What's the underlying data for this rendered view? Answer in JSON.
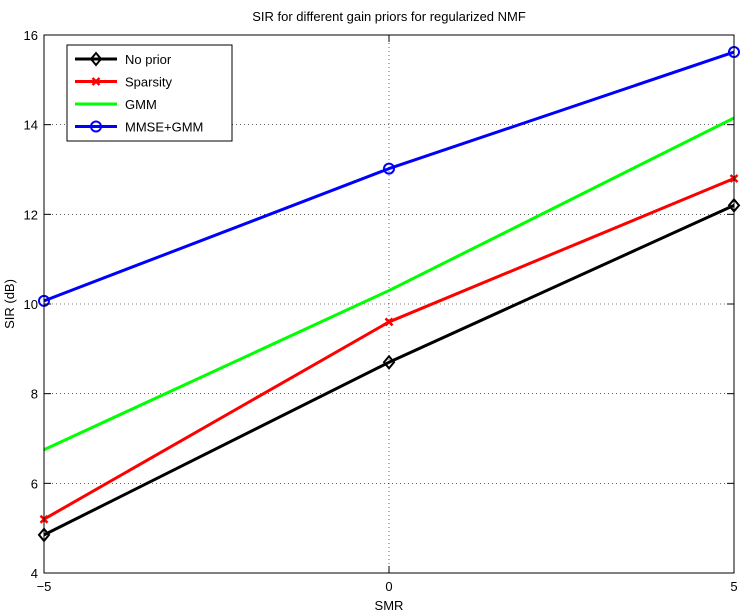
{
  "chart_data": {
    "type": "line",
    "title": "SIR for different gain priors for regularized NMF",
    "xlabel": "SMR",
    "ylabel": "SIR (dB)",
    "x": [
      -5,
      0,
      5
    ],
    "xlim": [
      -5,
      5
    ],
    "ylim": [
      4,
      16
    ],
    "xticks": [
      -5,
      0,
      5
    ],
    "xtick_labels": [
      "−5",
      "0",
      "5"
    ],
    "yticks": [
      4,
      6,
      8,
      10,
      12,
      14,
      16
    ],
    "ytick_labels": [
      "4",
      "6",
      "8",
      "10",
      "12",
      "14",
      "16"
    ],
    "grid": "dotted",
    "legend_position": "top-left",
    "series": [
      {
        "name": "No prior",
        "values": [
          4.85,
          8.7,
          12.2
        ],
        "color": "#000000",
        "marker": "diamond"
      },
      {
        "name": "Sparsity",
        "values": [
          5.2,
          9.6,
          12.8
        ],
        "color": "#ff0000",
        "marker": "x"
      },
      {
        "name": "GMM",
        "values": [
          6.75,
          10.3,
          14.15
        ],
        "color": "#00ff00",
        "marker": "none"
      },
      {
        "name": "MMSE+GMM",
        "values": [
          10.07,
          13.02,
          15.62
        ],
        "color": "#0000ff",
        "marker": "circle"
      }
    ]
  }
}
